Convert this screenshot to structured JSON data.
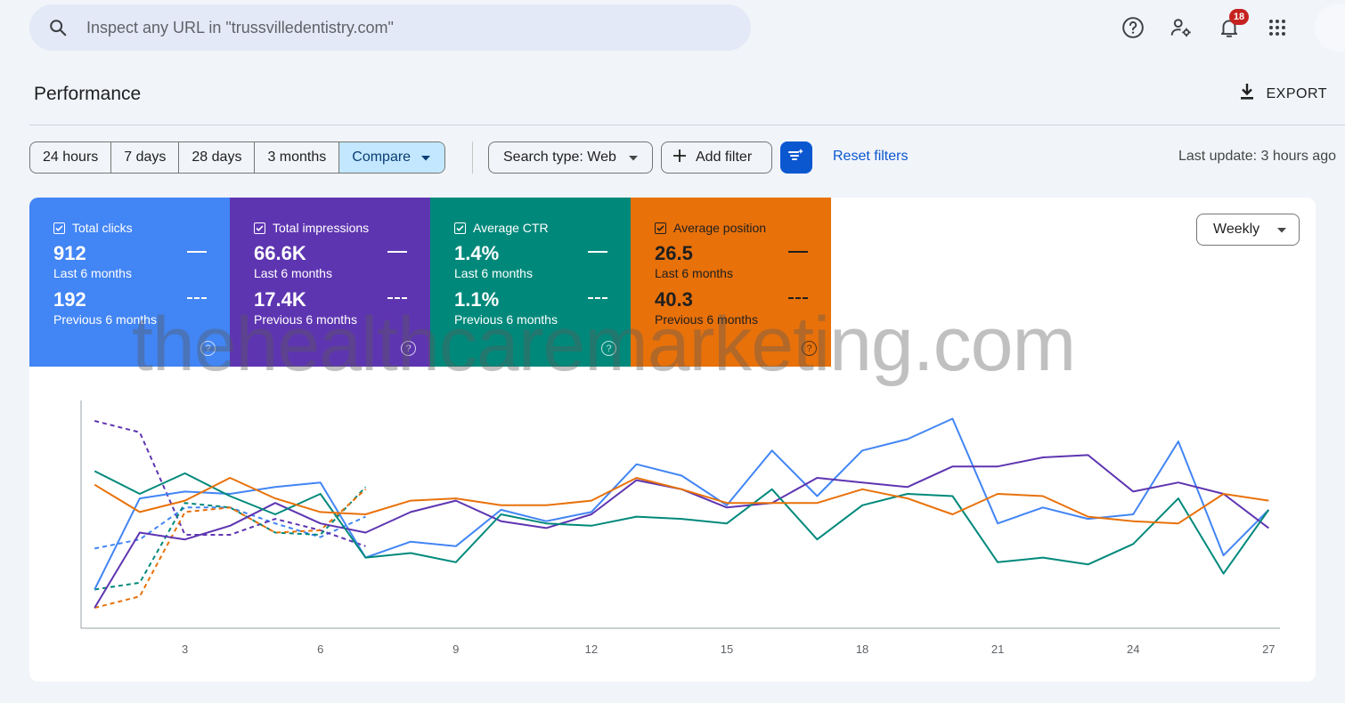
{
  "search": {
    "placeholder": "Inspect any URL in \"trussvilledentistry.com\""
  },
  "header_icons": [
    {
      "name": "help-icon"
    },
    {
      "name": "manage-users-icon"
    },
    {
      "name": "notifications-icon",
      "badge": "18"
    },
    {
      "name": "apps-grid-icon"
    }
  ],
  "page": {
    "title": "Performance",
    "export_label": "EXPORT"
  },
  "date_ranges": [
    {
      "label": "24 hours"
    },
    {
      "label": "7 days"
    },
    {
      "label": "28 days"
    },
    {
      "label": "3 months"
    },
    {
      "label": "Compare",
      "active": true
    }
  ],
  "filters": {
    "search_type": "Search type: Web",
    "add_filter": "Add filter",
    "reset": "Reset filters",
    "last_update": "Last update: 3 hours ago"
  },
  "metrics": [
    {
      "label": "Total clicks",
      "current": "912",
      "current_period": "Last 6 months",
      "previous": "192",
      "previous_period": "Previous 6 months",
      "color": "#4285f4"
    },
    {
      "label": "Total impressions",
      "current": "66.6K",
      "current_period": "Last 6 months",
      "previous": "17.4K",
      "previous_period": "Previous 6 months",
      "color": "#5e35b1"
    },
    {
      "label": "Average CTR",
      "current": "1.4%",
      "current_period": "Last 6 months",
      "previous": "1.1%",
      "previous_period": "Previous 6 months",
      "color": "#00897b"
    },
    {
      "label": "Average position",
      "current": "26.5",
      "current_period": "Last 6 months",
      "previous": "40.3",
      "previous_period": "Previous 6 months",
      "color": "#e8710a"
    }
  ],
  "granularity": "Weekly",
  "watermark": "thehealthcaremarketing.com",
  "chart_data": {
    "type": "line",
    "x_ticks": [
      3,
      6,
      9,
      12,
      15,
      18,
      21,
      24,
      27
    ],
    "xlim": [
      0.7,
      27.25
    ],
    "ylim": [
      0,
      100
    ],
    "grid": false,
    "series": [
      {
        "name": "Total clicks",
        "color": "#4285f4",
        "style": "solid",
        "x": [
          1,
          2,
          3,
          4,
          5,
          6,
          7,
          8,
          9,
          10,
          11,
          12,
          13,
          14,
          15,
          16,
          17,
          18,
          19,
          20,
          21,
          22,
          23,
          24,
          25,
          26,
          27
        ],
        "y": [
          17,
          57,
          60,
          59,
          62,
          64,
          31,
          38,
          36,
          52,
          47,
          51,
          72,
          67,
          54,
          78,
          58,
          78,
          83,
          92,
          46,
          53,
          48,
          50,
          82,
          32,
          52
        ]
      },
      {
        "name": "Total impressions",
        "color": "#5e35b1",
        "style": "solid",
        "x": [
          1,
          2,
          3,
          4,
          5,
          6,
          7,
          8,
          9,
          10,
          11,
          12,
          13,
          14,
          15,
          16,
          17,
          18,
          19,
          20,
          21,
          22,
          23,
          24,
          25,
          26,
          27
        ],
        "y": [
          9,
          42,
          39,
          45,
          55,
          46,
          42,
          51,
          56,
          47,
          44,
          50,
          65,
          61,
          53,
          55,
          66,
          64,
          62,
          71,
          71,
          75,
          76,
          60,
          64,
          59,
          44
        ]
      },
      {
        "name": "Average CTR",
        "color": "#00897b",
        "style": "solid",
        "x": [
          1,
          2,
          3,
          4,
          5,
          6,
          7,
          8,
          9,
          10,
          11,
          12,
          13,
          14,
          15,
          16,
          17,
          18,
          19,
          20,
          21,
          22,
          23,
          24,
          25,
          26,
          27
        ],
        "y": [
          69,
          59,
          68,
          58,
          50,
          59,
          31,
          33,
          29,
          50,
          46,
          45,
          49,
          48,
          46,
          61,
          39,
          54,
          59,
          58,
          29,
          31,
          28,
          37,
          57,
          24,
          52
        ]
      },
      {
        "name": "Average position",
        "color": "#e8710a",
        "style": "solid",
        "x": [
          1,
          2,
          3,
          4,
          5,
          6,
          7,
          8,
          9,
          10,
          11,
          12,
          13,
          14,
          15,
          16,
          17,
          18,
          19,
          20,
          21,
          22,
          23,
          24,
          25,
          26,
          27
        ],
        "y": [
          63,
          51,
          56,
          66,
          57,
          51,
          50,
          56,
          57,
          54,
          54,
          56,
          66,
          61,
          55,
          55,
          55,
          61,
          57,
          50,
          59,
          58,
          49,
          47,
          46,
          59,
          56
        ]
      },
      {
        "name": "Total clicks (previous)",
        "color": "#4285f4",
        "style": "dashed",
        "x": [
          1,
          2,
          3,
          4,
          5,
          6,
          7
        ],
        "y": [
          35,
          39,
          53,
          53,
          46,
          40,
          49
        ]
      },
      {
        "name": "Total impressions (previous)",
        "color": "#5e35b1",
        "style": "dashed",
        "x": [
          1,
          2,
          3,
          4,
          5,
          6,
          7
        ],
        "y": [
          91,
          86,
          41,
          41,
          48,
          43,
          36
        ]
      },
      {
        "name": "Average CTR (previous)",
        "color": "#00897b",
        "style": "dashed",
        "x": [
          1,
          2,
          3,
          4,
          5,
          6,
          7
        ],
        "y": [
          17,
          20,
          55,
          53,
          42,
          41,
          62
        ]
      },
      {
        "name": "Average position (previous)",
        "color": "#e8710a",
        "style": "dashed",
        "x": [
          1,
          2,
          3,
          4,
          5,
          6,
          7
        ],
        "y": [
          9,
          14,
          51,
          53,
          42,
          43,
          61
        ]
      }
    ]
  }
}
